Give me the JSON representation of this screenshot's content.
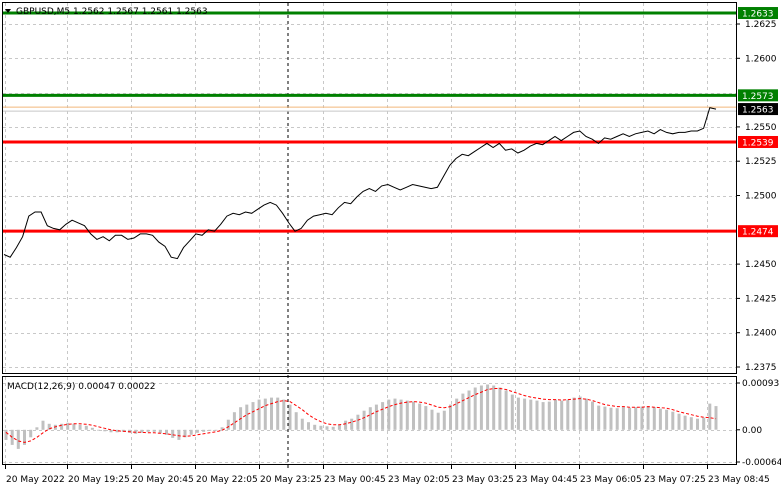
{
  "header": {
    "symbol_info": "GBPUSD,M5  1.2562 1.2567 1.2561 1.2563"
  },
  "price_axis": {
    "labels": [
      "1.2625",
      "1.2600",
      "1.2550",
      "1.2525",
      "1.2500",
      "1.2450",
      "1.2425",
      "1.2400",
      "1.2375"
    ],
    "values": [
      1.2625,
      1.26,
      1.255,
      1.2525,
      1.25,
      1.245,
      1.2425,
      1.24,
      1.2375
    ]
  },
  "levels": [
    {
      "label": "1.2633",
      "value": 1.2633,
      "color": "#008000"
    },
    {
      "label": "1.2573",
      "value": 1.2573,
      "color": "#008000"
    },
    {
      "label": "1.2539",
      "value": 1.2539,
      "color": "#ff0000"
    },
    {
      "label": "1.2474",
      "value": 1.2474,
      "color": "#ff0000"
    }
  ],
  "current_price": {
    "label": "1.2563",
    "value": 1.2563
  },
  "macd": {
    "label": "MACD(12,26,9) 0.00047 0.00022",
    "axis_labels": [
      "0.00093",
      "0.00",
      "-0.00064"
    ],
    "axis_values": [
      0.00093,
      0.0,
      -0.00064
    ]
  },
  "time_axis": {
    "labels": [
      "20 May 2022",
      "20 May 19:25",
      "20 May 20:45",
      "20 May 22:05",
      "20 May 23:25",
      "23 May 00:45",
      "23 May 02:05",
      "23 May 03:25",
      "23 May 04:45",
      "23 May 06:05",
      "23 May 07:25",
      "23 May 08:45"
    ]
  },
  "chart_data": {
    "type": "line",
    "series": [
      {
        "values": [
          1.2457,
          1.2455,
          1.2462,
          1.247,
          1.2485,
          1.2488,
          1.2488,
          1.2478,
          1.2476,
          1.2475,
          1.2479,
          1.2482,
          1.248,
          1.2478,
          1.2472,
          1.2468,
          1.247,
          1.2467,
          1.2471,
          1.2471,
          1.2468,
          1.2469,
          1.2472,
          1.2472,
          1.2471,
          1.2466,
          1.2463,
          1.2455,
          1.2454,
          1.2462,
          1.2467,
          1.2472,
          1.2471,
          1.2475,
          1.2474,
          1.2479,
          1.2485,
          1.2487,
          1.2486,
          1.2488,
          1.2487,
          1.249,
          1.2493,
          1.2495,
          1.2493,
          1.2487,
          1.248,
          1.2474,
          1.2476,
          1.2482,
          1.2485,
          1.2486,
          1.2487,
          1.2486,
          1.2491,
          1.2495,
          1.2494,
          1.2499,
          1.2503,
          1.2505,
          1.2503,
          1.2507,
          1.2508,
          1.2506,
          1.2504,
          1.2506,
          1.2508,
          1.2507,
          1.2506,
          1.2505,
          1.2506,
          1.2514,
          1.2522,
          1.2527,
          1.253,
          1.2529,
          1.2532,
          1.2535,
          1.2538,
          1.2535,
          1.2538,
          1.2533,
          1.2534,
          1.2531,
          1.2533,
          1.2536,
          1.2538,
          1.2537,
          1.254,
          1.2543,
          1.254,
          1.2543,
          1.2546,
          1.2547,
          1.2543,
          1.2541,
          1.2538,
          1.2542,
          1.2541,
          1.2543,
          1.2545,
          1.2543,
          1.2545,
          1.2546,
          1.2547,
          1.2545,
          1.2548,
          1.2546,
          1.2545,
          1.2546,
          1.2546,
          1.2547,
          1.2547,
          1.2549,
          1.2564,
          1.2563
        ]
      }
    ],
    "macd_histogram": [
      -0.0002,
      -0.0003,
      -0.00038,
      -0.0003,
      -0.00015,
      5e-05,
      0.00018,
      0.00012,
      0.0001,
      0.00012,
      0.00014,
      0.00012,
      0.0001,
      8e-05,
      4e-05,
      0.0,
      -3e-05,
      -5e-05,
      -5e-05,
      -4e-05,
      -6e-05,
      -8e-05,
      -6e-05,
      -4e-05,
      -4e-05,
      -7e-05,
      -0.0001,
      -0.00016,
      -0.0002,
      -0.00015,
      -0.0001,
      -6e-05,
      -4e-05,
      -2e-05,
      0.0,
      5e-05,
      0.0002,
      0.00035,
      0.00045,
      0.0005,
      0.00055,
      0.0006,
      0.00062,
      0.00064,
      0.00064,
      0.0006,
      0.0005,
      0.00035,
      0.00022,
      0.00015,
      0.0001,
      8e-05,
      7e-05,
      6e-05,
      0.0001,
      0.00018,
      0.00022,
      0.0003,
      0.00038,
      0.00045,
      0.0005,
      0.00055,
      0.0006,
      0.00062,
      0.0006,
      0.00058,
      0.00056,
      0.00052,
      0.00047,
      0.0004,
      0.00034,
      0.00038,
      0.0005,
      0.00062,
      0.00072,
      0.00078,
      0.00084,
      0.00088,
      0.0009,
      0.00088,
      0.00084,
      0.00078,
      0.0007,
      0.00064,
      0.00062,
      0.0006,
      0.00058,
      0.00055,
      0.00056,
      0.0006,
      0.00058,
      0.0006,
      0.00064,
      0.00066,
      0.00062,
      0.00056,
      0.00048,
      0.00046,
      0.00044,
      0.00043,
      0.00045,
      0.00044,
      0.00045,
      0.00046,
      0.00047,
      0.00045,
      0.00042,
      0.0004,
      0.00036,
      0.00032,
      0.00028,
      0.00025,
      0.00022,
      0.00024,
      0.00052,
      0.00047
    ],
    "macd_signal": [
      -5e-05,
      -0.00015,
      -0.00022,
      -0.00025,
      -0.00022,
      -0.00015,
      -6e-05,
      2e-05,
      6e-05,
      9e-05,
      0.00011,
      0.00012,
      0.00012,
      0.00011,
      9e-05,
      6e-05,
      3e-05,
      0.0,
      -2e-05,
      -3e-05,
      -4e-05,
      -5e-05,
      -5e-05,
      -6e-05,
      -6e-05,
      -7e-05,
      -8e-05,
      -0.0001,
      -0.00012,
      -0.00013,
      -0.00012,
      -0.0001,
      -8e-05,
      -6e-05,
      -4e-05,
      -1e-05,
      6e-05,
      0.00014,
      0.00022,
      0.0003,
      0.00036,
      0.00042,
      0.00048,
      0.00052,
      0.00056,
      0.00058,
      0.00056,
      0.00048,
      0.0004,
      0.0003,
      0.00022,
      0.00016,
      0.00012,
      0.0001,
      0.0001,
      0.00012,
      0.00015,
      0.00019,
      0.00024,
      0.0003,
      0.00036,
      0.00041,
      0.00046,
      0.0005,
      0.00053,
      0.00055,
      0.00056,
      0.00055,
      0.00053,
      0.00049,
      0.00045,
      0.00044,
      0.00046,
      0.00052,
      0.00058,
      0.00064,
      0.0007,
      0.00075,
      0.0008,
      0.00082,
      0.00082,
      0.0008,
      0.00076,
      0.00072,
      0.00068,
      0.00065,
      0.00063,
      0.00061,
      0.0006,
      0.0006,
      0.00059,
      0.0006,
      0.00061,
      0.00062,
      0.00061,
      0.00058,
      0.00054,
      0.0005,
      0.00048,
      0.00046,
      0.00046,
      0.00045,
      0.00045,
      0.00045,
      0.00046,
      0.00045,
      0.00044,
      0.00043,
      0.0004,
      0.00036,
      0.00033,
      0.0003,
      0.00027,
      0.00025,
      0.00024,
      0.00022
    ]
  }
}
